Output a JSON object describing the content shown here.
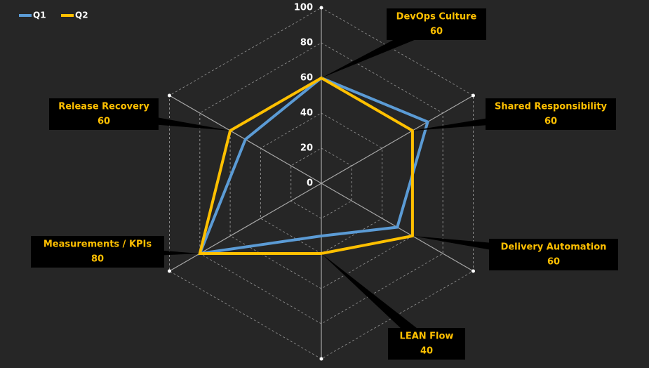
{
  "chart_data": {
    "type": "radar",
    "categories": [
      "DevOps Culture",
      "Shared Responsibility",
      "Delivery Automation",
      "LEAN Flow",
      "Measurements / KPIs",
      "Release Recovery"
    ],
    "series": [
      {
        "name": "Q1",
        "color": "#5b9bd5",
        "values": [
          60,
          70,
          50,
          30,
          80,
          50
        ]
      },
      {
        "name": "Q2",
        "color": "#ffc000",
        "values": [
          60,
          60,
          60,
          40,
          80,
          60
        ]
      }
    ],
    "rlim": [
      0,
      100
    ],
    "rticks": [
      0,
      20,
      40,
      60,
      80,
      100
    ],
    "grid": true,
    "legend": "top-left",
    "data_labels_series": 1
  }
}
